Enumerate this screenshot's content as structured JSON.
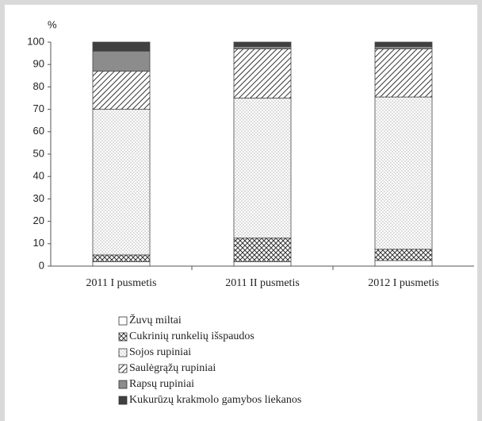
{
  "chart_data": {
    "type": "stacked_bar",
    "y_unit_label": "%",
    "categories": [
      "2011 I pusmetis",
      "2011 II pusmetis",
      "2012 I pusmetis"
    ],
    "series": [
      {
        "name": "Žuvų miltai",
        "color": "#ffffff",
        "pattern": "none",
        "values": [
          2,
          2,
          2.5
        ]
      },
      {
        "name": "Cukrinių runkelių išspaudos",
        "color": "#ffffff",
        "pattern": "crosshatch",
        "values": [
          3,
          10.5,
          5
        ]
      },
      {
        "name": "Sojos rupiniai",
        "color": "#ffffff",
        "pattern": "dots",
        "values": [
          65,
          62.5,
          68
        ]
      },
      {
        "name": "Saulėgrąžų rupiniai",
        "color": "#ffffff",
        "pattern": "diagonal",
        "values": [
          17,
          22,
          21.5
        ]
      },
      {
        "name": "Rapsų rupiniai",
        "color": "#8c8c8c",
        "pattern": "none",
        "values": [
          9,
          1,
          1
        ]
      },
      {
        "name": "Kukurūzų krakmolo gamybos liekanos",
        "color": "#404040",
        "pattern": "none",
        "values": [
          4,
          2,
          2
        ]
      }
    ],
    "ylim": [
      0,
      100
    ],
    "yticks": [
      0,
      10,
      20,
      30,
      40,
      50,
      60,
      70,
      80,
      90,
      100
    ],
    "grid": false
  }
}
